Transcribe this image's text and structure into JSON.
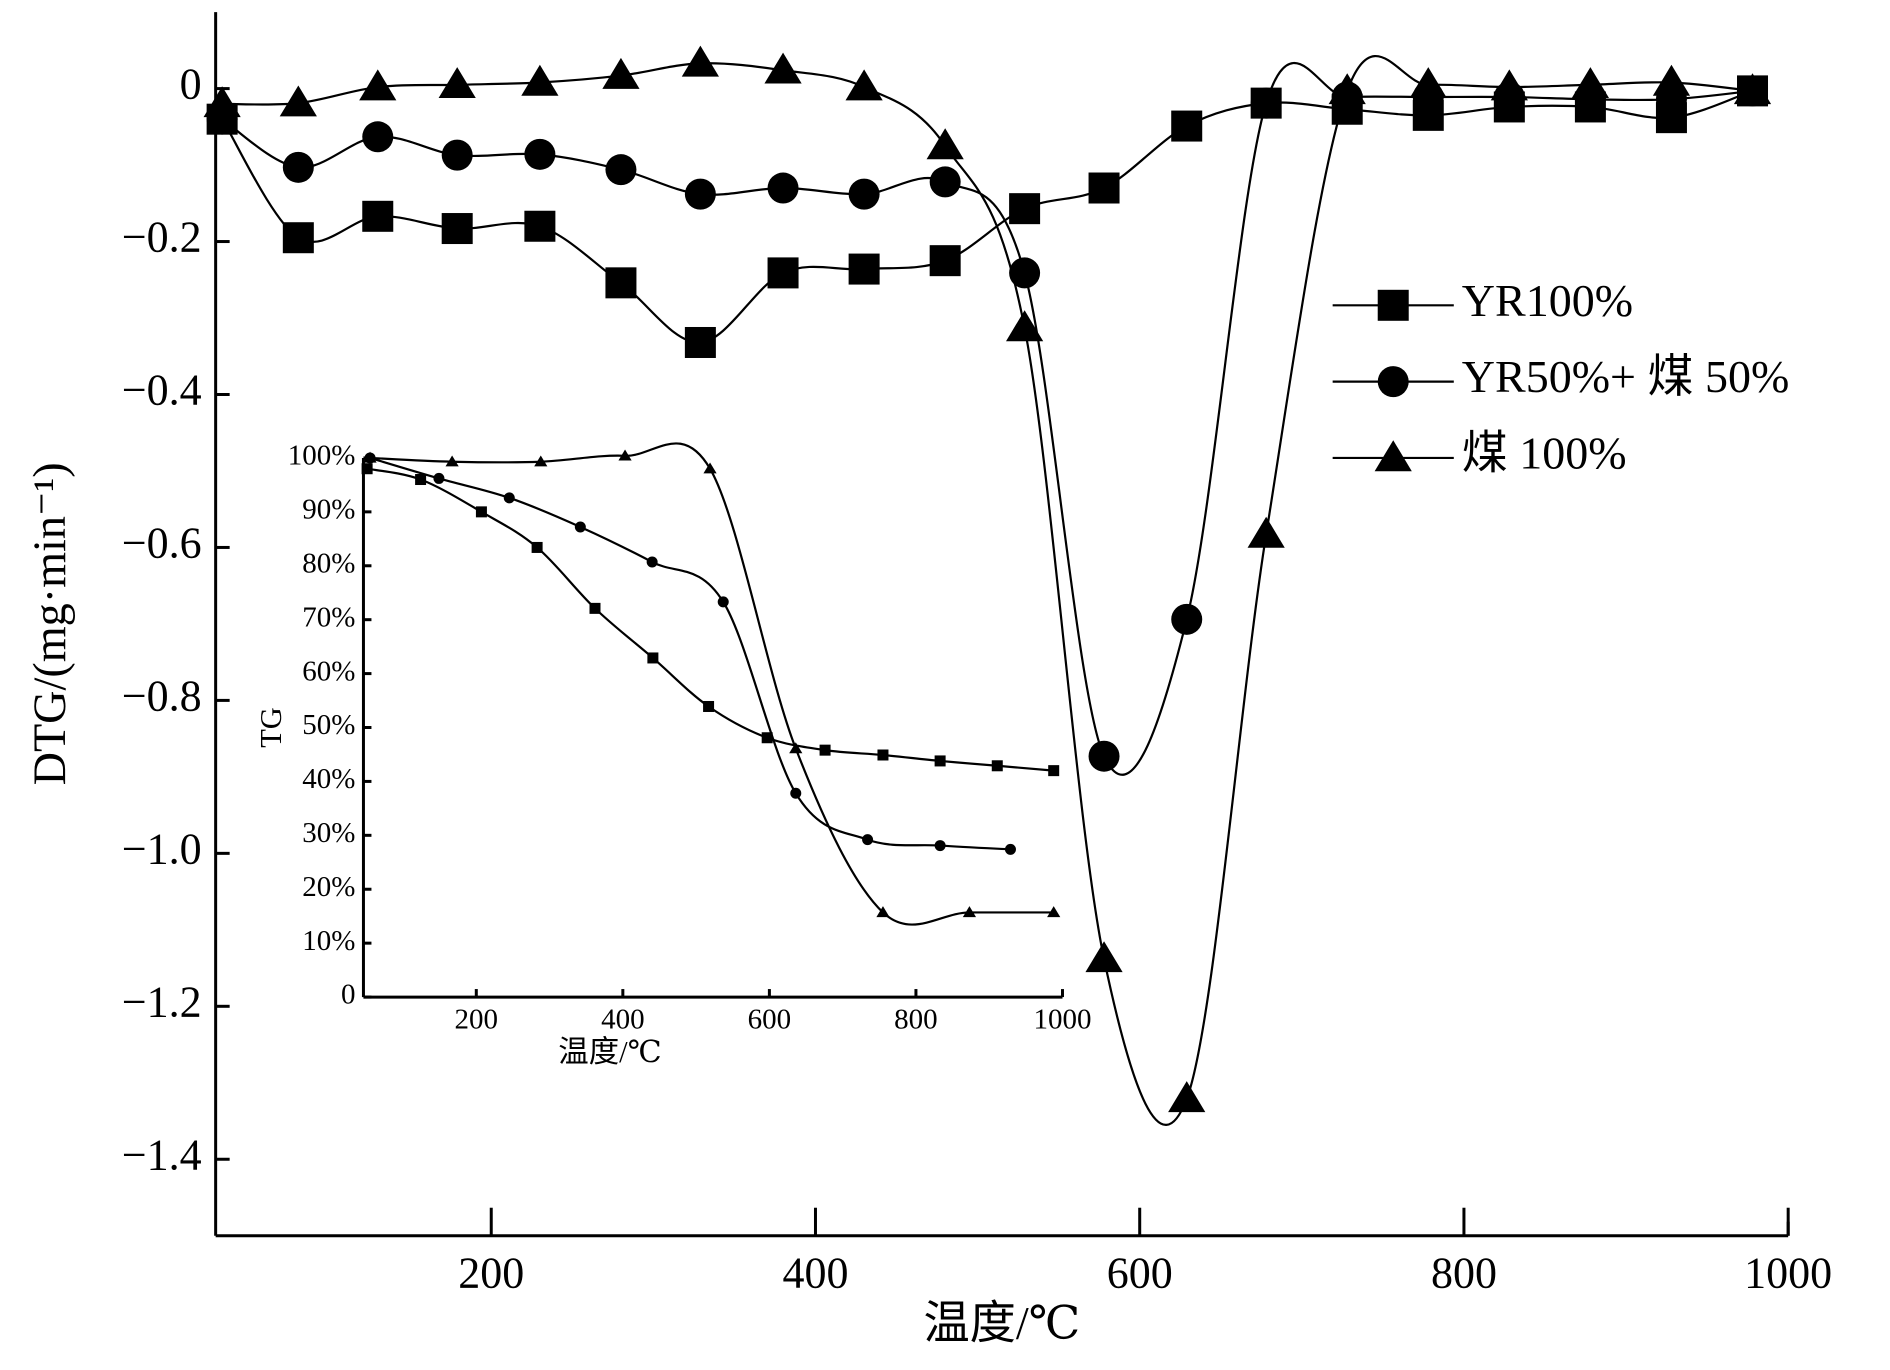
{
  "chart_data": [
    {
      "type": "line",
      "xlabel": "温度/℃",
      "ylabel": "DTG/(mg·min⁻¹)",
      "xlim": [
        30,
        1000
      ],
      "ylim": [
        -1.5,
        0.1
      ],
      "xticks": [
        200,
        400,
        600,
        800,
        1000
      ],
      "yticks": [
        0,
        {
          "value": -0.2,
          "label": "−0.2"
        },
        {
          "value": -0.4,
          "label": "−0.4"
        },
        {
          "value": -0.6,
          "label": "−0.6"
        },
        {
          "value": -0.8,
          "label": "−0.8"
        },
        {
          "value": -1.0,
          "label": "−1.0"
        },
        {
          "value": -1.2,
          "label": "−1.2"
        },
        {
          "value": -1.4,
          "label": "−1.4"
        }
      ],
      "legend": "right",
      "series": [
        {
          "name": "YR100%",
          "color": "#000000",
          "marker": "square",
          "x": [
            34,
            81,
            130,
            179,
            230,
            280,
            329,
            380,
            430,
            480,
            529,
            578,
            629,
            678,
            728,
            778,
            828,
            878,
            928,
            978
          ],
          "values": [
            -0.04,
            -0.195,
            -0.167,
            -0.183,
            -0.18,
            -0.254,
            -0.332,
            -0.241,
            -0.236,
            -0.225,
            -0.157,
            -0.13,
            -0.049,
            -0.019,
            -0.027,
            -0.035,
            -0.024,
            -0.024,
            -0.038,
            -0.003
          ]
        },
        {
          "name": "YR50%+ 煤 50%",
          "color": "#000000",
          "marker": "circle",
          "x": [
            34,
            81,
            130,
            179,
            230,
            280,
            329,
            380,
            430,
            480,
            529,
            578,
            629,
            678,
            728,
            778,
            828,
            878,
            928,
            978
          ],
          "values": [
            -0.04,
            -0.103,
            -0.063,
            -0.087,
            -0.086,
            -0.106,
            -0.138,
            -0.13,
            -0.138,
            -0.122,
            -0.241,
            -0.873,
            -0.694,
            -0.019,
            -0.011,
            -0.011,
            -0.011,
            -0.014,
            -0.014,
            -0.003
          ]
        },
        {
          "name": "煤 100%",
          "color": "#000000",
          "marker": "triangle",
          "x": [
            34,
            81,
            130,
            179,
            230,
            280,
            329,
            380,
            430,
            480,
            529,
            578,
            629,
            678,
            728,
            778,
            828,
            878,
            928,
            978
          ],
          "values": [
            -0.02,
            -0.019,
            0.002,
            0.005,
            0.008,
            0.017,
            0.033,
            0.024,
            0.002,
            -0.075,
            -0.313,
            -1.138,
            -1.321,
            -0.583,
            -0.003,
            0.005,
            0.002,
            0.005,
            0.008,
            -0.003
          ]
        }
      ]
    },
    {
      "type": "line",
      "xlabel": "温度/℃",
      "ylabel": "TG",
      "xlim": [
        46,
        1000
      ],
      "ylim": [
        0,
        100
      ],
      "xticks": [
        200,
        400,
        600,
        800,
        1000
      ],
      "yticks": [
        0,
        {
          "value": 10,
          "label": "10%"
        },
        {
          "value": 20,
          "label": "20%"
        },
        {
          "value": 30,
          "label": "30%"
        },
        {
          "value": 40,
          "label": "40%"
        },
        {
          "value": 50,
          "label": "50%"
        },
        {
          "value": 60,
          "label": "60%"
        },
        {
          "value": 70,
          "label": "70%"
        },
        {
          "value": 80,
          "label": "80%"
        },
        {
          "value": 90,
          "label": "90%"
        },
        {
          "value": 100,
          "label": "100%"
        }
      ],
      "series": [
        {
          "color": "#000000",
          "marker": "square",
          "x": [
            51,
            124,
            207,
            283,
            362,
            441,
            517,
            597,
            676,
            755,
            833,
            911,
            988
          ],
          "values": [
            98,
            96,
            90,
            83.4,
            72.1,
            62.9,
            53.9,
            48.1,
            45.8,
            44.9,
            43.8,
            42.9,
            42
          ]
        },
        {
          "color": "#000000",
          "marker": "circle",
          "x": [
            55,
            149,
            245,
            342,
            440,
            537,
            636,
            734,
            833,
            929
          ],
          "values": [
            100,
            96.2,
            92.6,
            87.2,
            80.7,
            73.3,
            37.8,
            29.2,
            28.1,
            27.4
          ]
        },
        {
          "color": "#000000",
          "marker": "triangle",
          "x": [
            55,
            167,
            288,
            403,
            519,
            636,
            755,
            873,
            988
          ],
          "values": [
            100,
            99.3,
            99.3,
            100.4,
            98,
            46.1,
            15.7,
            15.7,
            15.7
          ]
        }
      ]
    }
  ]
}
